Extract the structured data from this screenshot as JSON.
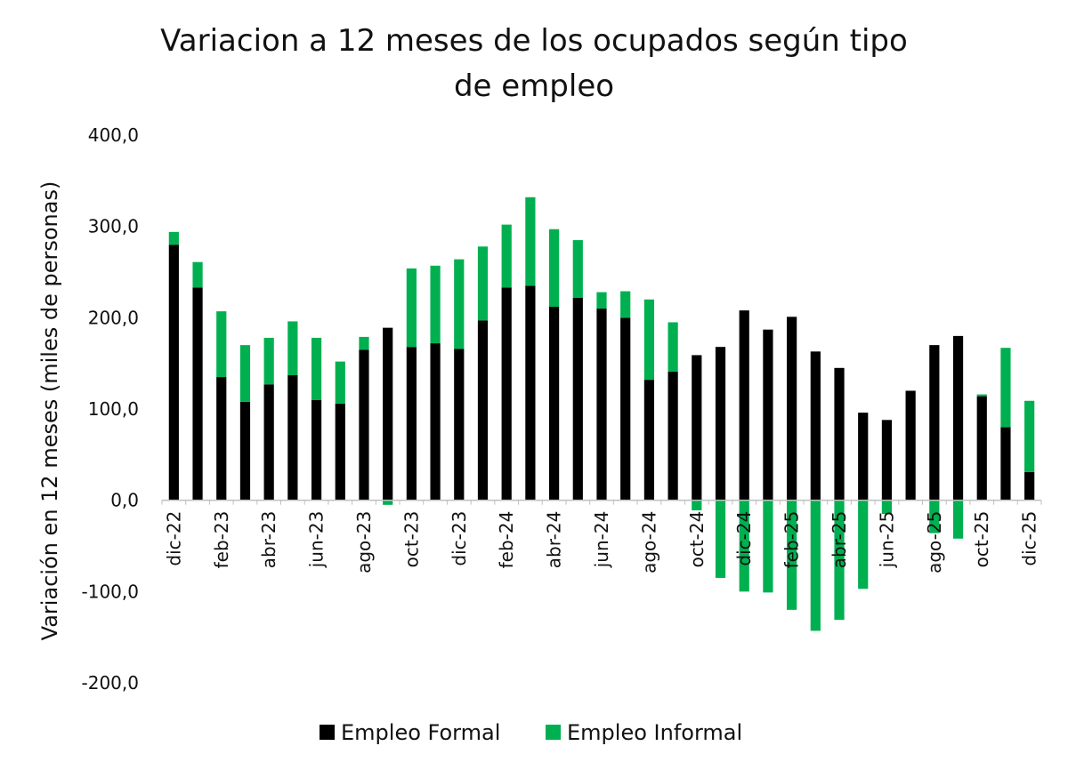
{
  "chart_data": {
    "type": "bar",
    "stacked": true,
    "title": "Variacion a 12 meses de los ocupados según tipo de empleo",
    "title_lines": [
      "Variacion a 12 meses de los ocupados según tipo",
      "de empleo"
    ],
    "ylabel": "Variación en 12 meses (miles de personas)",
    "xlabel": "",
    "ylim": [
      -200,
      400
    ],
    "yticks": [
      400,
      300,
      200,
      100,
      0,
      -100,
      -200
    ],
    "ytick_labels": [
      "400,0",
      "300,0",
      "200,0",
      "100,0",
      "0,0",
      "-100,0",
      "-200,0"
    ],
    "grid": false,
    "legend_position": "bottom",
    "categories": [
      "dic-22",
      "ene-23",
      "feb-23",
      "mar-23",
      "abr-23",
      "may-23",
      "jun-23",
      "jul-23",
      "ago-23",
      "sep-23",
      "oct-23",
      "nov-23",
      "dic-23",
      "ene-24",
      "feb-24",
      "mar-24",
      "abr-24",
      "may-24",
      "jun-24",
      "jul-24",
      "ago-24",
      "sep-24",
      "oct-24",
      "nov-24",
      "dic-24",
      "ene-25",
      "feb-25",
      "mar-25",
      "abr-25",
      "may-25",
      "jun-25",
      "jul-25",
      "ago-25",
      "sep-25",
      "oct-25",
      "nov-25",
      "dic-25"
    ],
    "xtick_labels": [
      "dic-22",
      "feb-23",
      "abr-23",
      "jun-23",
      "ago-23",
      "oct-23",
      "dic-23",
      "feb-24",
      "abr-24",
      "jun-24",
      "ago-24",
      "oct-24",
      "dic-24",
      "feb-25",
      "abr-25",
      "jun-25",
      "ago-25",
      "oct-25",
      "dic-25"
    ],
    "series": [
      {
        "name": "Empleo Formal",
        "color": "#000000",
        "values": [
          280,
          233,
          135,
          108,
          127,
          137,
          110,
          106,
          165,
          189,
          168,
          172,
          166,
          197,
          233,
          235,
          212,
          222,
          210,
          200,
          132,
          141,
          159,
          168,
          208,
          187,
          201,
          163,
          145,
          96,
          88,
          120,
          170,
          180,
          114,
          80,
          31
        ]
      },
      {
        "name": "Empleo Informal",
        "color": "#00b050",
        "values": [
          14,
          28,
          72,
          62,
          51,
          59,
          68,
          46,
          14,
          -5,
          86,
          85,
          98,
          81,
          69,
          97,
          85,
          63,
          18,
          29,
          88,
          54,
          -11,
          -85,
          -100,
          -101,
          -120,
          -143,
          -131,
          -97,
          -15,
          0,
          -36,
          -42,
          2,
          87,
          78
        ]
      }
    ]
  }
}
